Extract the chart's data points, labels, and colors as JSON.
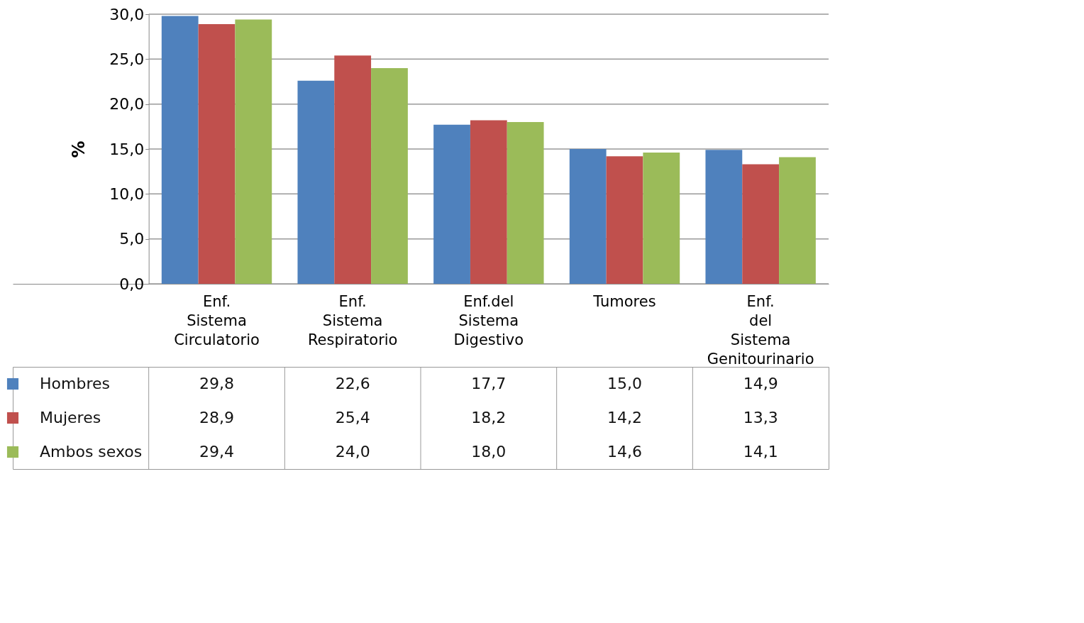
{
  "chart_data": {
    "type": "bar",
    "ylabel": "%",
    "categories": [
      "Enf. Sistema Circulatorio",
      "Enf. Sistema Respiratorio",
      "Enf.del Sistema Digestivo",
      "Tumores",
      "Enf. del Sistema Genitourinario"
    ],
    "series": [
      {
        "name": "Hombres",
        "color": "#4f81bd",
        "values": [
          29.8,
          22.6,
          17.7,
          15.0,
          14.9
        ],
        "value_labels": [
          "29,8",
          "22,6",
          "17,7",
          "15,0",
          "14,9"
        ]
      },
      {
        "name": "Mujeres",
        "color": "#c0504d",
        "values": [
          28.9,
          25.4,
          18.2,
          14.2,
          13.3
        ],
        "value_labels": [
          "28,9",
          "25,4",
          "18,2",
          "14,2",
          "13,3"
        ]
      },
      {
        "name": "Ambos sexos",
        "color": "#9bbb59",
        "values": [
          29.4,
          24.0,
          18.0,
          14.6,
          14.1
        ],
        "value_labels": [
          "29,4",
          "24,0",
          "18,0",
          "14,6",
          "14,1"
        ]
      }
    ],
    "ylim": [
      0,
      30
    ],
    "yticks": [
      {
        "value": 0,
        "label": "0,0"
      },
      {
        "value": 5,
        "label": "5,0"
      },
      {
        "value": 10,
        "label": "10,0"
      },
      {
        "value": 15,
        "label": "15,0"
      },
      {
        "value": 20,
        "label": "20,0"
      },
      {
        "value": 25,
        "label": "25,0"
      },
      {
        "value": 30,
        "label": "30,0"
      }
    ],
    "grid": "y",
    "legend": "bottom"
  }
}
